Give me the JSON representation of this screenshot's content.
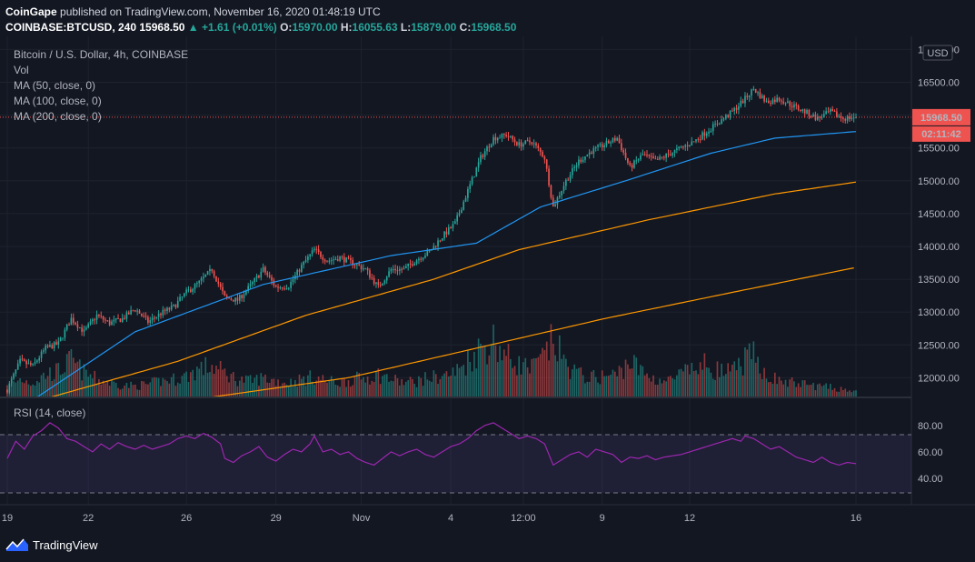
{
  "header": {
    "publisher": "CoinGape",
    "published_text": "published on TradingView.com, November 16, 2020 01:48:19 UTC",
    "symbol": "COINBASE:BTCUSD, 240",
    "last": "15968.50",
    "change": "+1.61 (+0.01%)",
    "o_label": "O:",
    "o_val": "15970.00",
    "h_label": "H:",
    "h_val": "16055.63",
    "l_label": "L:",
    "l_val": "15879.00",
    "c_label": "C:",
    "c_val": "15968.50"
  },
  "legend": {
    "title": "Bitcoin / U.S. Dollar, 4h, COINBASE",
    "vol": "Vol",
    "ma50": "MA (50, close, 0)",
    "ma100": "MA (100, close, 0)",
    "ma200": "MA (200, close, 0)",
    "rsi": "RSI (14, close)"
  },
  "currency_badge": "USD",
  "price_badge": "15968.50",
  "countdown_badge": "02:11:42",
  "footer": {
    "brand": "TradingView"
  },
  "colors": {
    "up": "#26a69a",
    "down": "#ef5350",
    "ma50": "#2196f3",
    "ma100": "#ff9800",
    "ma200": "#ff9800",
    "rsi": "#9c27b0",
    "background": "#131722"
  },
  "chart_data": {
    "type": "candlestick",
    "y_axis": {
      "range": [
        11700,
        17200
      ],
      "ticks": [
        "12000.00",
        "12500.00",
        "13000.00",
        "13500.00",
        "14000.00",
        "14500.00",
        "15000.00",
        "15500.00",
        "16000.00",
        "16500.00",
        "17000.00"
      ]
    },
    "x_axis": {
      "tick_labels": [
        "19",
        "22",
        "26",
        "29",
        "Nov",
        "4",
        "12:00",
        "9",
        "12",
        "16"
      ]
    },
    "last_price": 15968.5,
    "price_path": [
      [
        0,
        11820
      ],
      [
        6,
        12250
      ],
      [
        12,
        12180
      ],
      [
        18,
        12450
      ],
      [
        24,
        12520
      ],
      [
        30,
        12900
      ],
      [
        36,
        12700
      ],
      [
        42,
        12950
      ],
      [
        48,
        12830
      ],
      [
        54,
        12900
      ],
      [
        60,
        13050
      ],
      [
        66,
        12850
      ],
      [
        72,
        12980
      ],
      [
        78,
        13080
      ],
      [
        84,
        13300
      ],
      [
        90,
        13450
      ],
      [
        96,
        13650
      ],
      [
        102,
        13220
      ],
      [
        108,
        13180
      ],
      [
        114,
        13400
      ],
      [
        120,
        13650
      ],
      [
        126,
        13380
      ],
      [
        132,
        13400
      ],
      [
        138,
        13700
      ],
      [
        144,
        13950
      ],
      [
        150,
        13780
      ],
      [
        156,
        13830
      ],
      [
        162,
        13750
      ],
      [
        168,
        13650
      ],
      [
        174,
        13380
      ],
      [
        180,
        13650
      ],
      [
        186,
        13650
      ],
      [
        192,
        13800
      ],
      [
        198,
        13920
      ],
      [
        204,
        14150
      ],
      [
        210,
        14350
      ],
      [
        216,
        14850
      ],
      [
        222,
        15350
      ],
      [
        228,
        15650
      ],
      [
        234,
        15700
      ],
      [
        240,
        15550
      ],
      [
        246,
        15600
      ],
      [
        252,
        15350
      ],
      [
        256,
        14600
      ],
      [
        262,
        15000
      ],
      [
        268,
        15300
      ],
      [
        274,
        15450
      ],
      [
        280,
        15550
      ],
      [
        286,
        15650
      ],
      [
        292,
        15200
      ],
      [
        298,
        15400
      ],
      [
        304,
        15300
      ],
      [
        310,
        15400
      ],
      [
        316,
        15500
      ],
      [
        322,
        15600
      ],
      [
        328,
        15750
      ],
      [
        334,
        15900
      ],
      [
        340,
        16050
      ],
      [
        346,
        16250
      ],
      [
        350,
        16400
      ],
      [
        356,
        16200
      ],
      [
        362,
        16250
      ],
      [
        368,
        16150
      ],
      [
        374,
        16050
      ],
      [
        380,
        15950
      ],
      [
        386,
        16050
      ],
      [
        392,
        15950
      ],
      [
        398,
        15968.5
      ]
    ],
    "ma50": [
      [
        0,
        11400
      ],
      [
        60,
        12700
      ],
      [
        120,
        13420
      ],
      [
        180,
        13860
      ],
      [
        220,
        14050
      ],
      [
        250,
        14600
      ],
      [
        290,
        15000
      ],
      [
        330,
        15420
      ],
      [
        360,
        15650
      ],
      [
        398,
        15750
      ]
    ],
    "ma100": [
      [
        20,
        11700
      ],
      [
        80,
        12250
      ],
      [
        140,
        12950
      ],
      [
        200,
        13500
      ],
      [
        240,
        13950
      ],
      [
        300,
        14400
      ],
      [
        360,
        14800
      ],
      [
        398,
        14980
      ]
    ],
    "ma200": [
      [
        95,
        11700
      ],
      [
        160,
        12000
      ],
      [
        220,
        12450
      ],
      [
        280,
        12900
      ],
      [
        340,
        13300
      ],
      [
        398,
        13680
      ]
    ],
    "volume_profile": [
      [
        0,
        12
      ],
      [
        6,
        22
      ],
      [
        12,
        18
      ],
      [
        18,
        28
      ],
      [
        24,
        32
      ],
      [
        30,
        45
      ],
      [
        36,
        30
      ],
      [
        42,
        22
      ],
      [
        48,
        18
      ],
      [
        54,
        15
      ],
      [
        60,
        14
      ],
      [
        66,
        16
      ],
      [
        72,
        20
      ],
      [
        78,
        22
      ],
      [
        84,
        26
      ],
      [
        90,
        35
      ],
      [
        96,
        38
      ],
      [
        102,
        30
      ],
      [
        108,
        22
      ],
      [
        114,
        20
      ],
      [
        120,
        24
      ],
      [
        126,
        20
      ],
      [
        132,
        18
      ],
      [
        138,
        22
      ],
      [
        144,
        25
      ],
      [
        150,
        20
      ],
      [
        156,
        18
      ],
      [
        162,
        22
      ],
      [
        168,
        24
      ],
      [
        174,
        28
      ],
      [
        180,
        22
      ],
      [
        186,
        18
      ],
      [
        192,
        20
      ],
      [
        198,
        24
      ],
      [
        204,
        26
      ],
      [
        210,
        30
      ],
      [
        216,
        45
      ],
      [
        222,
        60
      ],
      [
        228,
        70
      ],
      [
        234,
        50
      ],
      [
        240,
        40
      ],
      [
        246,
        35
      ],
      [
        252,
        50
      ],
      [
        256,
        70
      ],
      [
        262,
        40
      ],
      [
        268,
        28
      ],
      [
        274,
        24
      ],
      [
        280,
        26
      ],
      [
        286,
        28
      ],
      [
        292,
        45
      ],
      [
        298,
        30
      ],
      [
        304,
        22
      ],
      [
        310,
        20
      ],
      [
        316,
        28
      ],
      [
        322,
        34
      ],
      [
        328,
        40
      ],
      [
        334,
        32
      ],
      [
        340,
        30
      ],
      [
        346,
        46
      ],
      [
        350,
        50
      ],
      [
        356,
        28
      ],
      [
        362,
        20
      ],
      [
        368,
        18
      ],
      [
        374,
        16
      ],
      [
        380,
        14
      ],
      [
        386,
        12
      ],
      [
        392,
        10
      ],
      [
        398,
        8
      ]
    ],
    "rsi": {
      "range": [
        20,
        95
      ],
      "ticks": [
        "40.00",
        "60.00",
        "80.00"
      ],
      "upper_band": 70,
      "lower_band": 30,
      "values": [
        [
          0,
          55
        ],
        [
          4,
          68
        ],
        [
          8,
          62
        ],
        [
          12,
          72
        ],
        [
          16,
          76
        ],
        [
          20,
          82
        ],
        [
          24,
          78
        ],
        [
          28,
          70
        ],
        [
          32,
          68
        ],
        [
          36,
          64
        ],
        [
          40,
          60
        ],
        [
          44,
          66
        ],
        [
          48,
          62
        ],
        [
          52,
          67
        ],
        [
          56,
          64
        ],
        [
          60,
          62
        ],
        [
          64,
          65
        ],
        [
          68,
          62
        ],
        [
          72,
          64
        ],
        [
          76,
          66
        ],
        [
          80,
          70
        ],
        [
          84,
          72
        ],
        [
          88,
          70
        ],
        [
          92,
          74
        ],
        [
          96,
          71
        ],
        [
          100,
          66
        ],
        [
          102,
          55
        ],
        [
          106,
          52
        ],
        [
          110,
          57
        ],
        [
          114,
          60
        ],
        [
          118,
          64
        ],
        [
          122,
          56
        ],
        [
          126,
          53
        ],
        [
          130,
          58
        ],
        [
          134,
          62
        ],
        [
          138,
          60
        ],
        [
          142,
          66
        ],
        [
          144,
          72
        ],
        [
          148,
          60
        ],
        [
          152,
          62
        ],
        [
          156,
          58
        ],
        [
          160,
          60
        ],
        [
          164,
          55
        ],
        [
          168,
          52
        ],
        [
          172,
          50
        ],
        [
          176,
          55
        ],
        [
          180,
          60
        ],
        [
          184,
          57
        ],
        [
          188,
          60
        ],
        [
          192,
          62
        ],
        [
          196,
          58
        ],
        [
          200,
          56
        ],
        [
          204,
          60
        ],
        [
          208,
          64
        ],
        [
          212,
          66
        ],
        [
          216,
          70
        ],
        [
          220,
          76
        ],
        [
          224,
          80
        ],
        [
          228,
          82
        ],
        [
          232,
          78
        ],
        [
          236,
          74
        ],
        [
          240,
          70
        ],
        [
          244,
          72
        ],
        [
          248,
          70
        ],
        [
          252,
          66
        ],
        [
          256,
          50
        ],
        [
          260,
          54
        ],
        [
          264,
          58
        ],
        [
          268,
          60
        ],
        [
          272,
          56
        ],
        [
          276,
          62
        ],
        [
          280,
          60
        ],
        [
          284,
          58
        ],
        [
          288,
          52
        ],
        [
          292,
          56
        ],
        [
          296,
          55
        ],
        [
          300,
          57
        ],
        [
          304,
          54
        ],
        [
          308,
          56
        ],
        [
          312,
          57
        ],
        [
          316,
          58
        ],
        [
          320,
          60
        ],
        [
          324,
          62
        ],
        [
          328,
          64
        ],
        [
          332,
          66
        ],
        [
          336,
          68
        ],
        [
          340,
          70
        ],
        [
          344,
          68
        ],
        [
          346,
          72
        ],
        [
          350,
          70
        ],
        [
          354,
          66
        ],
        [
          358,
          62
        ],
        [
          362,
          64
        ],
        [
          366,
          60
        ],
        [
          370,
          56
        ],
        [
          374,
          54
        ],
        [
          378,
          52
        ],
        [
          382,
          56
        ],
        [
          386,
          52
        ],
        [
          390,
          50
        ],
        [
          394,
          52
        ],
        [
          398,
          51
        ]
      ]
    }
  }
}
